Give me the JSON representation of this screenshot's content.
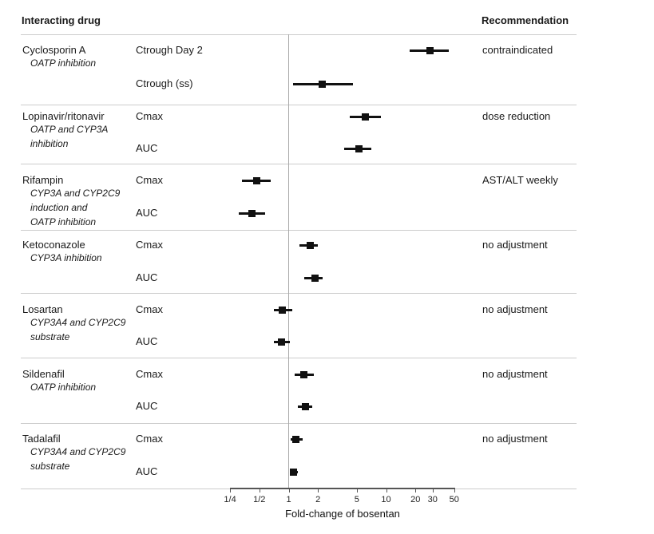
{
  "headers": {
    "left": "Interacting drug",
    "right": "Recommendation"
  },
  "chart_data": {
    "type": "forest",
    "title": "",
    "xlabel": "Fold-change of bosentan",
    "x_scale": "log",
    "xlim": [
      0.25,
      50
    ],
    "reference_value": 1,
    "grid": false,
    "x_ticks": [
      {
        "label": "1/4",
        "value": 0.25
      },
      {
        "label": "1/2",
        "value": 0.5
      },
      {
        "label": "1",
        "value": 1
      },
      {
        "label": "2",
        "value": 2
      },
      {
        "label": "5",
        "value": 5
      },
      {
        "label": "10",
        "value": 10
      },
      {
        "label": "20",
        "value": 20
      },
      {
        "label": "30",
        "value": 30
      },
      {
        "label": "50",
        "value": 50
      }
    ],
    "groups": [
      {
        "drug": "Cyclosporin A",
        "mechanism": [
          "OATP inhibition"
        ],
        "recommendation": "contraindicated",
        "rows": [
          {
            "label": "Ctrough Day 2",
            "value": 28,
            "lo": 17.5,
            "hi": 44
          },
          {
            "label": "Ctrough (ss)",
            "value": 2.2,
            "lo": 1.1,
            "hi": 4.6
          }
        ]
      },
      {
        "drug": "Lopinavir/ritonavir",
        "mechanism": [
          "OATP and CYP3A",
          "inhibition"
        ],
        "recommendation": "dose reduction",
        "rows": [
          {
            "label": "Cmax",
            "value": 6.1,
            "lo": 4.2,
            "hi": 8.9
          },
          {
            "label": "AUC",
            "value": 5.3,
            "lo": 3.7,
            "hi": 7.1
          }
        ]
      },
      {
        "drug": "Rifampin",
        "mechanism": [
          "CYP3A and CYP2C9",
          "induction and",
          "OATP inhibition"
        ],
        "recommendation": "AST/ALT weekly",
        "rows": [
          {
            "label": "Cmax",
            "value": 0.47,
            "lo": 0.33,
            "hi": 0.66
          },
          {
            "label": "AUC",
            "value": 0.42,
            "lo": 0.31,
            "hi": 0.57
          }
        ]
      },
      {
        "drug": "Ketoconazole",
        "mechanism": [
          "CYP3A inhibition"
        ],
        "recommendation": "no adjustment",
        "rows": [
          {
            "label": "Cmax",
            "value": 1.65,
            "lo": 1.3,
            "hi": 2.0
          },
          {
            "label": "AUC",
            "value": 1.85,
            "lo": 1.45,
            "hi": 2.25
          }
        ]
      },
      {
        "drug": "Losartan",
        "mechanism": [
          "CYP3A4 and CYP2C9",
          "substrate"
        ],
        "recommendation": "no adjustment",
        "rows": [
          {
            "label": "Cmax",
            "value": 0.86,
            "lo": 0.7,
            "hi": 1.08
          },
          {
            "label": "AUC",
            "value": 0.84,
            "lo": 0.7,
            "hi": 1.02
          }
        ]
      },
      {
        "drug": "Sildenafil",
        "mechanism": [
          "OATP inhibition"
        ],
        "recommendation": "no adjustment",
        "rows": [
          {
            "label": "Cmax",
            "value": 1.43,
            "lo": 1.15,
            "hi": 1.8
          },
          {
            "label": "AUC",
            "value": 1.5,
            "lo": 1.25,
            "hi": 1.76
          }
        ]
      },
      {
        "drug": "Tadalafil",
        "mechanism": [
          "CYP3A4 and CYP2C9",
          "substrate"
        ],
        "recommendation": "no adjustment",
        "rows": [
          {
            "label": "Cmax",
            "value": 1.19,
            "lo": 1.04,
            "hi": 1.38
          },
          {
            "label": "AUC",
            "value": 1.12,
            "lo": 1.02,
            "hi": 1.25
          }
        ]
      }
    ],
    "colors": {
      "marker": "#111111",
      "separator": "#cccccc",
      "reference_line": "#a9a9a9",
      "axis": "#555555",
      "text": "#1a1a1a"
    },
    "legend": null
  }
}
